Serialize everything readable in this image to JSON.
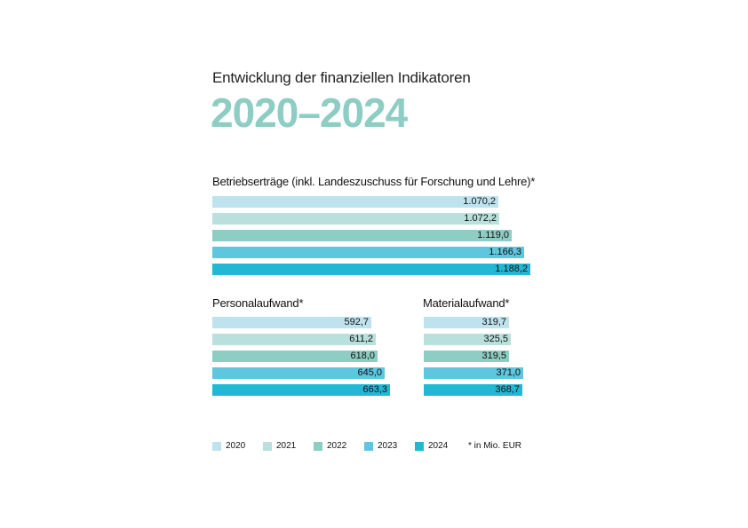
{
  "header": {
    "subtitle": "Entwicklung der finanziellen Indikatoren",
    "headline": "2020–2024"
  },
  "colors": {
    "2020": "#bee3ef",
    "2021": "#b9e0dc",
    "2022": "#8ecdc4",
    "2023": "#5fc6df",
    "2024": "#22b8d4",
    "headline": "#8ecdc4"
  },
  "chart_data": [
    {
      "type": "bar",
      "orientation": "horizontal",
      "title": "Betriebserträge (inkl. Landeszuschuss für Forschung und Lehre)*",
      "categories": [
        "2020",
        "2021",
        "2022",
        "2023",
        "2024"
      ],
      "values": [
        1070.2,
        1072.2,
        1119.0,
        1166.3,
        1188.2
      ],
      "labels": [
        "1.070,2",
        "1.072,2",
        "1.119,0",
        "1.166,3",
        "1.188,2"
      ],
      "unit": "Mio. EUR"
    },
    {
      "type": "bar",
      "orientation": "horizontal",
      "title": "Personalaufwand*",
      "categories": [
        "2020",
        "2021",
        "2022",
        "2023",
        "2024"
      ],
      "values": [
        592.7,
        611.2,
        618.0,
        645.0,
        663.3
      ],
      "labels": [
        "592,7",
        "611,2",
        "618,0",
        "645,0",
        "663,3"
      ],
      "unit": "Mio. EUR"
    },
    {
      "type": "bar",
      "orientation": "horizontal",
      "title": "Materialaufwand*",
      "categories": [
        "2020",
        "2021",
        "2022",
        "2023",
        "2024"
      ],
      "values": [
        319.7,
        325.5,
        319.5,
        371.0,
        368.7
      ],
      "labels": [
        "319,7",
        "325,5",
        "319,5",
        "371,0",
        "368,7"
      ],
      "unit": "Mio. EUR"
    }
  ],
  "legend": {
    "items": [
      "2020",
      "2021",
      "2022",
      "2023",
      "2024"
    ],
    "footnote": "* in Mio. EUR"
  }
}
